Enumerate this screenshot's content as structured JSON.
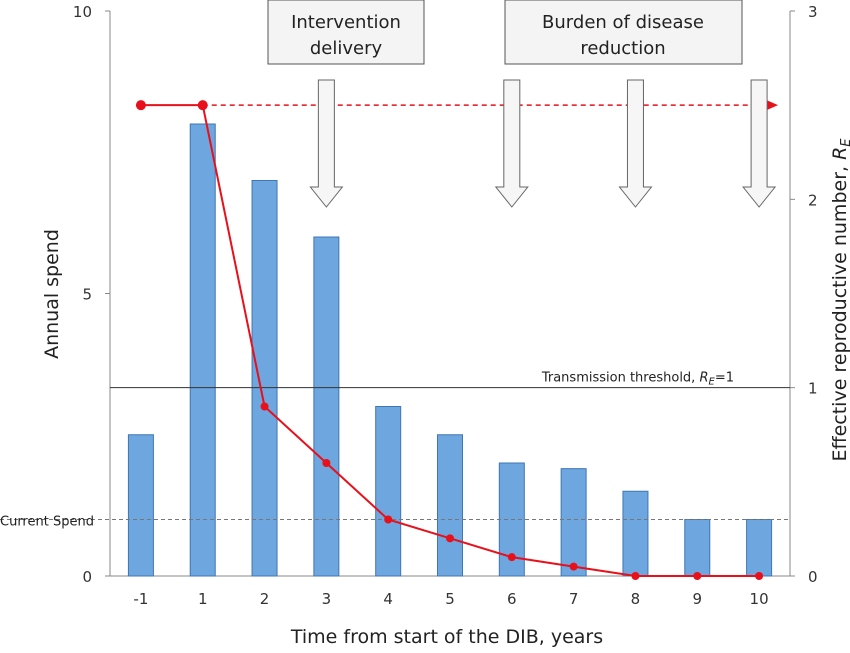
{
  "chart_data": {
    "type": "bar",
    "x_label": "Time from start of the DIB, years",
    "categories": [
      "-1",
      "1",
      "2",
      "3",
      "4",
      "5",
      "6",
      "7",
      "8",
      "9",
      "10"
    ],
    "bar_series": {
      "axis": "left",
      "color": "#6ea6e0",
      "values": [
        2.5,
        8.0,
        7.0,
        6.0,
        3.0,
        2.5,
        2.0,
        1.9,
        1.5,
        1.0,
        1.0
      ]
    },
    "line_series": {
      "axis": "right",
      "color": "#e8101a",
      "values": [
        2.5,
        2.5,
        0.9,
        0.6,
        0.3,
        0.2,
        0.1,
        0.05,
        0.0,
        0.0,
        0.0
      ]
    },
    "dashed_projection": {
      "value": 2.5,
      "color": "#e8101a"
    },
    "left_axis": {
      "label": "Annual spend",
      "ylim": [
        0,
        10
      ],
      "ticks": [
        "0",
        "5",
        "10"
      ]
    },
    "right_axis": {
      "label_prefix": "Effective reproductive number, ",
      "label_symbol": "R",
      "label_sub": "E",
      "ylim": [
        0,
        3
      ],
      "ticks": [
        "0",
        "1",
        "2",
        "3"
      ]
    },
    "threshold": {
      "value_right": 1,
      "label_prefix": "Transmission threshold, ",
      "label_symbol": "R",
      "label_sub": "E",
      "label_suffix": "=1"
    },
    "current_spend": {
      "value_left": 1.0,
      "label": "Current Spend"
    },
    "annotation_boxes": [
      {
        "line1": "Intervention",
        "line2": "delivery"
      },
      {
        "line1": "Burden of disease",
        "line2": "reduction"
      }
    ],
    "down_arrows_at_categories": [
      "3",
      "6",
      "8",
      "10"
    ]
  }
}
